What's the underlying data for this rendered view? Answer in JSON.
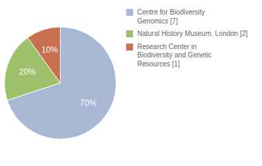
{
  "chart_data": {
    "type": "pie",
    "categories": [
      "Centre for Biodiversity\nGenomics [7]",
      "Natural History Museum. London [2]",
      "Research Center in\nBiodiversity and Genetic\nResources [1]"
    ],
    "values": [
      70,
      20,
      10
    ],
    "value_labels": [
      "70%",
      "20%",
      "10%"
    ],
    "colors": [
      "#a8b8d4",
      "#9ec06a",
      "#c87050"
    ],
    "data_labels": true,
    "legend": "right"
  }
}
